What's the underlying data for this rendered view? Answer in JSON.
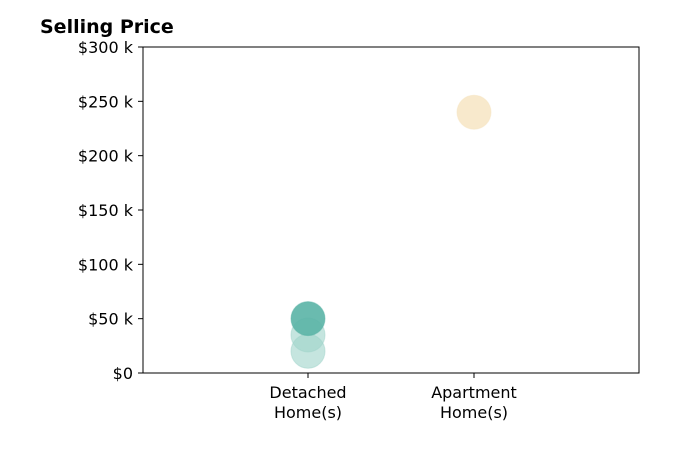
{
  "chart_data": {
    "type": "scatter",
    "title": "Selling Price",
    "xlabel": "",
    "ylabel": "",
    "categories": [
      [
        "Detached",
        "Home(s)"
      ],
      [
        "Apartment",
        "Home(s)"
      ]
    ],
    "ylim": [
      0,
      300
    ],
    "yticks": [
      {
        "value": 0,
        "label": "$0"
      },
      {
        "value": 50,
        "label": "$50 k"
      },
      {
        "value": 100,
        "label": "$100 k"
      },
      {
        "value": 150,
        "label": "$150 k"
      },
      {
        "value": 200,
        "label": "$200 k"
      },
      {
        "value": 250,
        "label": "$250 k"
      },
      {
        "value": 300,
        "label": "$300 k"
      }
    ],
    "points": [
      {
        "category": 0,
        "y": 50,
        "color": "#5ab4a6",
        "opacity": 0.9
      },
      {
        "category": 0,
        "y": 35,
        "color": "#9fd3ca",
        "opacity": 0.6
      },
      {
        "category": 0,
        "y": 20,
        "color": "#9fd3ca",
        "opacity": 0.6
      },
      {
        "category": 1,
        "y": 240,
        "color": "#f6e3bf",
        "opacity": 0.8
      }
    ],
    "grid": false,
    "legend": "none"
  }
}
